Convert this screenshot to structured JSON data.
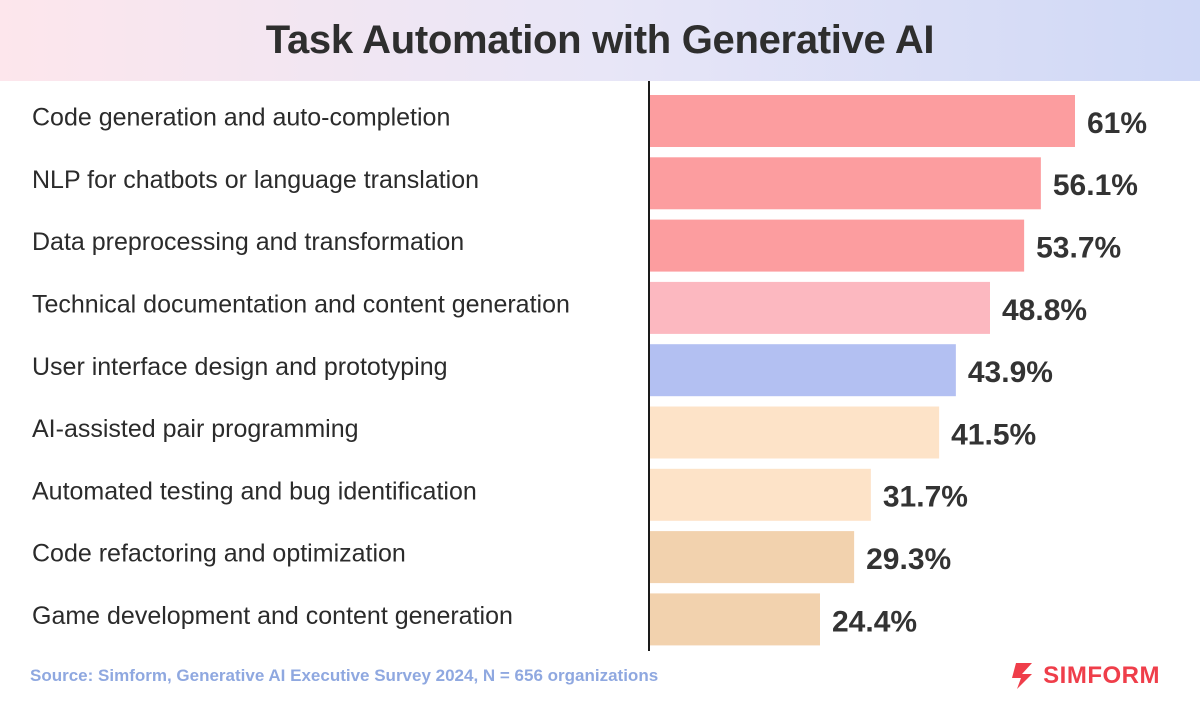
{
  "chart_data": {
    "type": "bar",
    "orientation": "horizontal",
    "title": "Task Automation with Generative AI",
    "categories": [
      "Code generation and auto-completion",
      "NLP for chatbots or language translation",
      "Data preprocessing and transformation",
      "Technical documentation and content generation",
      "User interface design and prototyping",
      "AI-assisted pair programming",
      "Automated testing and bug identification",
      "Code refactoring and optimization",
      "Game development and content generation"
    ],
    "values": [
      61,
      56.1,
      53.7,
      48.8,
      43.9,
      41.5,
      31.7,
      29.3,
      24.4
    ],
    "value_labels": [
      "61%",
      "56.1%",
      "53.7%",
      "48.8%",
      "43.9%",
      "41.5%",
      "31.7%",
      "29.3%",
      "24.4%"
    ],
    "colors": [
      "#fc9d9f",
      "#fc9d9f",
      "#fc9d9f",
      "#fcb8c0",
      "#b3c0f2",
      "#fde3c8",
      "#fde3c8",
      "#f2d2ae",
      "#f2d2ae"
    ],
    "grid": false,
    "legend": "none"
  },
  "footer": {
    "source": "Source: Simform, Generative AI Executive Survey 2024, N = 656 organizations",
    "brand": "SIMFORM"
  },
  "colors": {
    "brand": "#ef3e4a",
    "source_text": "#8fa8e0",
    "axis": "#1a1a1a"
  },
  "icons": {
    "brand_logo": "simform-logo-icon"
  }
}
